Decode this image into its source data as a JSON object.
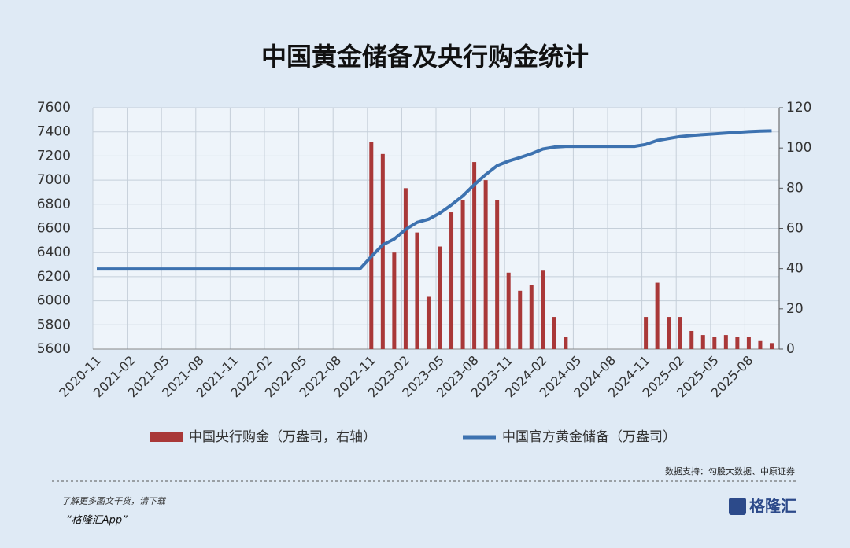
{
  "chart_data": {
    "type": "bar-line",
    "title": "中国黄金储备及央行购金统计",
    "source": "数据支持：勾股大数据、中原证券",
    "categories": [
      "2020-11",
      null,
      null,
      "2021-02",
      null,
      null,
      "2021-05",
      null,
      null,
      "2021-08",
      null,
      null,
      "2021-11",
      null,
      null,
      "2022-02",
      null,
      null,
      "2022-05",
      null,
      null,
      "2022-08",
      null,
      null,
      "2022-11",
      null,
      null,
      "2023-02",
      null,
      null,
      "2023-05",
      null,
      null,
      "2023-08",
      null,
      null,
      "2023-11",
      null,
      null,
      "2024-02",
      null,
      null,
      "2024-05",
      null,
      null,
      "2024-08",
      null,
      null,
      "2024-11",
      null,
      null,
      "2025-02",
      null,
      null,
      "2025-05",
      null,
      null,
      "2025-08",
      null,
      null
    ],
    "series": [
      {
        "name": "中国央行购金（万盎司，右轴）",
        "color": "#a93838",
        "axis": "y2",
        "values": [
          0,
          0,
          0,
          0,
          0,
          0,
          0,
          0,
          0,
          0,
          0,
          0,
          0,
          0,
          0,
          0,
          0,
          0,
          0,
          0,
          0,
          0,
          0,
          0,
          103,
          97,
          48,
          80,
          58,
          26,
          51,
          68,
          74,
          93,
          84,
          74,
          38,
          29,
          32,
          39,
          16,
          6,
          0,
          0,
          0,
          0,
          0,
          0,
          16,
          33,
          16,
          16,
          9,
          7,
          6,
          7,
          6,
          6,
          4,
          3
        ]
      },
      {
        "name": "中国官方黄金储备（万盎司）",
        "color": "#3d72b0",
        "axis": "y",
        "values": [
          6264,
          6264,
          6264,
          6264,
          6264,
          6264,
          6264,
          6264,
          6264,
          6264,
          6264,
          6264,
          6264,
          6264,
          6264,
          6264,
          6264,
          6264,
          6264,
          6264,
          6264,
          6264,
          6264,
          6264,
          6367,
          6464,
          6512,
          6592,
          6650,
          6676,
          6727,
          6795,
          6869,
          6962,
          7046,
          7120,
          7158,
          7187,
          7219,
          7258,
          7274,
          7280,
          7280,
          7280,
          7280,
          7280,
          7280,
          7280,
          7296,
          7329,
          7345,
          7361,
          7370,
          7377,
          7383,
          7390,
          7396,
          7402,
          7406,
          7409
        ]
      }
    ],
    "ylim": [
      5600,
      7600
    ],
    "yticks": [
      5600,
      5800,
      6000,
      6200,
      6400,
      6600,
      6800,
      7000,
      7200,
      7400,
      7600
    ],
    "y2lim": [
      0,
      120
    ],
    "y2ticks": [
      0,
      20,
      40,
      60,
      80,
      100,
      120
    ],
    "grid": true
  },
  "footer": {
    "note": "了解更多图文干货，请下载",
    "app": "“格隆汇App”",
    "logo": "格隆汇"
  }
}
